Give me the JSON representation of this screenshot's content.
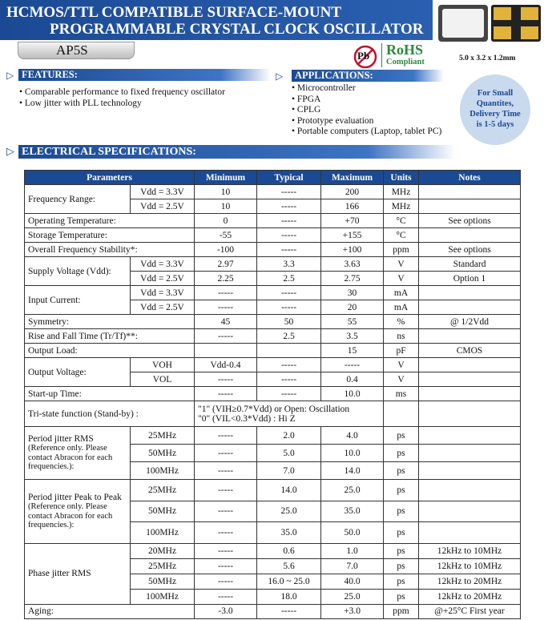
{
  "header": {
    "title_line1": "HCMOS/TTL COMPATIBLE SURFACE-MOUNT",
    "title_line2": "PROGRAMMABLE CRYSTAL CLOCK OSCILLATOR",
    "part": "AP5S",
    "size": "5.0 x 3.2 x 1.2mm",
    "rohs": {
      "pb": "Pb",
      "label": "RoHS",
      "sub": "Compliant"
    }
  },
  "features": {
    "title": "FEATURES:",
    "items": [
      "Comparable performance to  fixed frequency oscillator",
      "Low jitter with PLL technology"
    ]
  },
  "applications": {
    "title": "APPLICATIONS:",
    "items": [
      "Microcontroller",
      "FPGA",
      "CPLG",
      "Prototype evaluation",
      "Portable computers (Laptop, tablet PC)"
    ]
  },
  "delivery_note": [
    "For Small",
    "Quantites,",
    "Delivery Time",
    "is 1-5 days"
  ],
  "specs_title": "ELECTRICAL SPECIFICATIONS:",
  "table": {
    "header": [
      "Parameters",
      "Minimum",
      "Typical",
      "Maximum",
      "Units",
      "Notes"
    ],
    "rows": [
      {
        "param": "Frequency Range:",
        "subs": [
          {
            "sub": "Vdd = 3.3V",
            "min": "10",
            "typ": "-----",
            "max": "200",
            "units": "MHz"
          },
          {
            "sub": "Vdd = 2.5V",
            "min": "10",
            "typ": "-----",
            "max": "166",
            "units": "MHz"
          }
        ]
      },
      {
        "param": "Operating Temperature:",
        "min": "0",
        "typ": "-----",
        "max": "+70",
        "units": "°C",
        "notes": "See options"
      },
      {
        "param": "Storage Temperature:",
        "min": "-55",
        "typ": "-----",
        "max": "+155",
        "units": "°C"
      },
      {
        "param": "Overall Frequency Stability*:",
        "min": "-100",
        "typ": "-----",
        "max": "+100",
        "units": "ppm",
        "notes": "See options"
      },
      {
        "param": "Supply Voltage (Vdd):",
        "subs": [
          {
            "sub": "Vdd = 3.3V",
            "min": "2.97",
            "typ": "3.3",
            "max": "3.63",
            "units": "V",
            "notes": "Standard"
          },
          {
            "sub": "Vdd = 2.5V",
            "min": "2.25",
            "typ": "2.5",
            "max": "2.75",
            "units": "V",
            "notes": "Option 1"
          }
        ]
      },
      {
        "param": "Input Current:",
        "subs": [
          {
            "sub": "Vdd = 3.3V",
            "min": "-----",
            "typ": "-----",
            "max": "30",
            "units": "mA"
          },
          {
            "sub": "Vdd = 2.5V",
            "min": "-----",
            "typ": "-----",
            "max": "20",
            "units": "mA"
          }
        ]
      },
      {
        "param": "Symmetry:",
        "min": "45",
        "typ": "50",
        "max": "55",
        "units": "%",
        "notes": "@ 1/2Vdd"
      },
      {
        "param": "Rise and Fall Time (Tr/Tf)**:",
        "min": "-----",
        "typ": "2.5",
        "max": "3.5",
        "units": "ns"
      },
      {
        "param": "Output Load:",
        "max": "15",
        "units": "pF",
        "notes": "CMOS"
      },
      {
        "param": "Output Voltage:",
        "subs": [
          {
            "sub": "VOH",
            "min": "Vdd-0.4",
            "typ": "-----",
            "max": "-----",
            "units": "V"
          },
          {
            "sub": "VOL",
            "min": "-----",
            "typ": "-----",
            "max": "0.4",
            "units": "V"
          }
        ]
      },
      {
        "param": "Start-up Time:",
        "min": "-----",
        "typ": "-----",
        "max": "10.0",
        "units": "ms"
      },
      {
        "param": "Tri-state function (Stand-by) :",
        "text": [
          "\"1\" (VIH≥0.7*Vdd) or Open: Oscillation",
          "\"0\" (VIL<0.3*Vdd) : Hi Z"
        ]
      },
      {
        "param": "Period jitter RMS",
        "note": "(Reference only. Please contact Abracon for each frequencies.):",
        "subs": [
          {
            "sub": "25MHz",
            "min": "-----",
            "typ": "2.0",
            "max": "4.0",
            "units": "ps"
          },
          {
            "sub": "50MHz",
            "min": "-----",
            "typ": "5.0",
            "max": "10.0",
            "units": "ps"
          },
          {
            "sub": "100MHz",
            "min": "-----",
            "typ": "7.0",
            "max": "14.0",
            "units": "ps"
          }
        ]
      },
      {
        "param": "Period jitter Peak to Peak",
        "note": "(Reference only. Please contact Abracon for each frequencies.):",
        "subs": [
          {
            "sub": "25MHz",
            "min": "-----",
            "typ": "14.0",
            "max": "25.0",
            "units": "ps"
          },
          {
            "sub": "50MHz",
            "min": "-----",
            "typ": "25.0",
            "max": "35.0",
            "units": "ps"
          },
          {
            "sub": "100MHz",
            "min": "-----",
            "typ": "35.0",
            "max": "50.0",
            "units": "ps"
          }
        ]
      },
      {
        "param": "Phase jitter RMS",
        "subs": [
          {
            "sub": "20MHz",
            "min": "-----",
            "typ": "0.6",
            "max": "1.0",
            "units": "ps",
            "notes": "12kHz to 10MHz"
          },
          {
            "sub": "25MHz",
            "min": "-----",
            "typ": "5.6",
            "max": "7.0",
            "units": "ps",
            "notes": "12kHz to 10MHz"
          },
          {
            "sub": "50MHz",
            "min": "-----",
            "typ": "16.0 ~ 25.0",
            "max": "40.0",
            "units": "ps",
            "notes": "12kHz to 20MHz"
          },
          {
            "sub": "100MHz",
            "min": "-----",
            "typ": "18.0",
            "max": "25.0",
            "units": "ps",
            "notes": "12kHz to 20MHz"
          }
        ]
      },
      {
        "param": "Aging:",
        "min": "-3.0",
        "typ": "-----",
        "max": "+3.0",
        "units": "ppm",
        "notes": "@+25°C  First year"
      }
    ]
  }
}
